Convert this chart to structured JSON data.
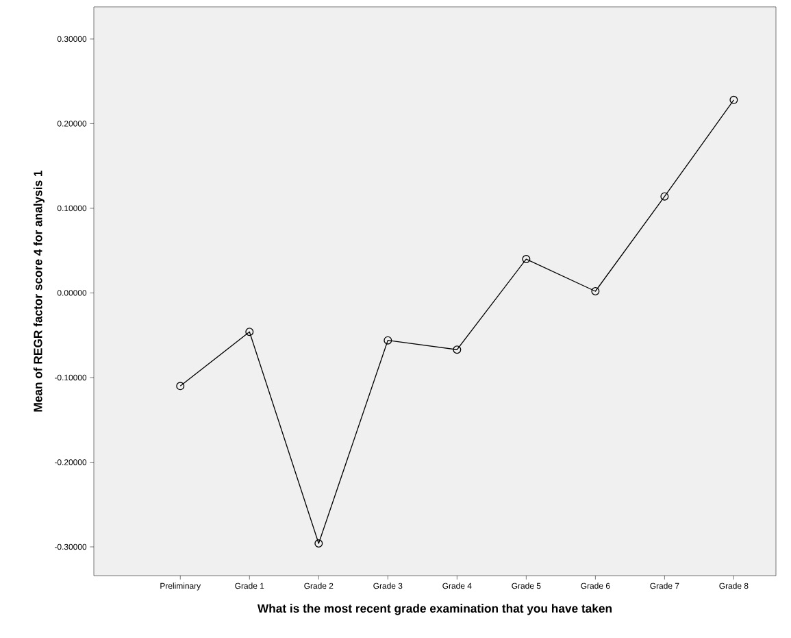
{
  "chart_data": {
    "type": "line",
    "xlabel": "What is the most recent grade examination that you have taken",
    "ylabel": "Mean of REGR factor score   4 for analysis 1",
    "categories": [
      "Preliminary",
      "Grade 1",
      "Grade 2",
      "Grade 3",
      "Grade 4",
      "Grade 5",
      "Grade 6",
      "Grade 7",
      "Grade 8"
    ],
    "values": [
      -0.11,
      -0.046,
      -0.296,
      -0.056,
      -0.067,
      0.04,
      0.002,
      0.114,
      0.228
    ],
    "color": "#000000",
    "ylim": [
      -0.334,
      0.338
    ],
    "yticks": [
      {
        "value": -0.3,
        "label": "-0.30000"
      },
      {
        "value": -0.2,
        "label": "-0.20000"
      },
      {
        "value": -0.1,
        "label": "-0.10000"
      },
      {
        "value": 0,
        "label": "0.00000"
      },
      {
        "value": 0.1,
        "label": "0.10000"
      },
      {
        "value": 0.2,
        "label": "0.20000"
      },
      {
        "value": 0.3,
        "label": "0.30000"
      }
    ],
    "marker": "circle",
    "line_style": "solid",
    "grid": false
  }
}
